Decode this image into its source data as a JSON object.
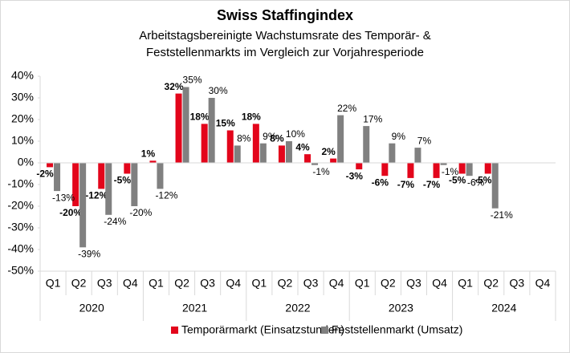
{
  "chart_data": {
    "type": "bar",
    "title": "Swiss Staffingindex",
    "subtitle": [
      "Arbeitstagsbereinigte Wachstumsrate des Temporär- &",
      "Feststellenmarkts im Vergleich zur Vorjahresperiode"
    ],
    "categories": [
      "Q1",
      "Q2",
      "Q3",
      "Q4",
      "Q1",
      "Q2",
      "Q3",
      "Q4",
      "Q1",
      "Q2",
      "Q3",
      "Q4",
      "Q1",
      "Q2",
      "Q3",
      "Q4",
      "Q1",
      "Q2",
      "Q3",
      "Q4"
    ],
    "category_groups": [
      "2020",
      "2021",
      "2022",
      "2023",
      "2024"
    ],
    "series": [
      {
        "name": "Temporärmarkt (Einsatzstunden)",
        "color": "#e3051b",
        "values": [
          -2,
          -20,
          -12,
          -5,
          1,
          32,
          18,
          15,
          18,
          8,
          4,
          2,
          -3,
          -6,
          -7,
          -7,
          -5,
          -5,
          null,
          null
        ],
        "value_labels": [
          "-2%",
          "-20%",
          "-12%",
          "-5%",
          "1%",
          "32%",
          "18%",
          "15%",
          "18%",
          "8%",
          "4%",
          "2%",
          "-3%",
          "-6%",
          "-7%",
          "-7%",
          "-5%",
          "-5%",
          null,
          null
        ]
      },
      {
        "name": "Feststellenmarkt (Umsatz)",
        "color": "#808080",
        "values": [
          -13,
          -39,
          -24,
          -20,
          -12,
          35,
          30,
          8,
          9,
          10,
          -1,
          22,
          17,
          9,
          7,
          -1,
          -6,
          -21,
          null,
          null
        ],
        "value_labels": [
          "-13%",
          "-39%",
          "-24%",
          "-20%",
          "-12%",
          "35%",
          "30%",
          "8%",
          "9%",
          "10%",
          "-1%",
          "22%",
          "17%",
          "9%",
          "7%",
          "-1%",
          "-6%",
          "-21%",
          null,
          null
        ]
      }
    ],
    "ylim": [
      -50,
      40
    ],
    "yticks": [
      {
        "value": -50,
        "label": "-50%"
      },
      {
        "value": -40,
        "label": "-40%"
      },
      {
        "value": -30,
        "label": "-30%"
      },
      {
        "value": -20,
        "label": "-20%"
      },
      {
        "value": -10,
        "label": "-10%"
      },
      {
        "value": 0,
        "label": "0%"
      },
      {
        "value": 10,
        "label": "10%"
      },
      {
        "value": 20,
        "label": "20%"
      },
      {
        "value": 30,
        "label": "30%"
      },
      {
        "value": 40,
        "label": "40%"
      }
    ],
    "legend": "bottom"
  }
}
